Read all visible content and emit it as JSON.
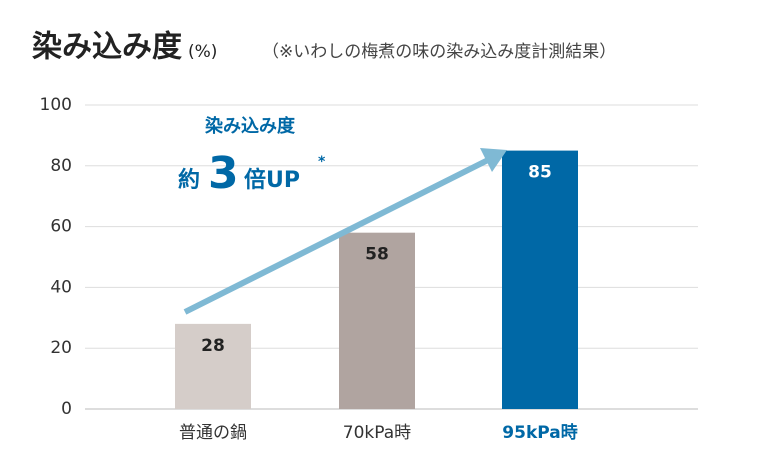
{
  "chart_data": {
    "type": "bar",
    "title": "染み込み度",
    "unit": "(%)",
    "subtitle": "（※いわしの梅煮の味の染み込み度計測結果）",
    "categories": [
      "普通の鍋",
      "70kPa時",
      "95kPa時"
    ],
    "values": [
      28,
      58,
      85
    ],
    "colors": [
      "#d5cdc9",
      "#b0a4a0",
      "#0068a6"
    ],
    "highlight": 2,
    "ylim": [
      0,
      100
    ],
    "yticks": [
      0,
      20,
      40,
      60,
      80,
      100
    ],
    "grid": true,
    "annotation": {
      "heading": "染み込み度",
      "prefix": "約",
      "number": "3",
      "suffix": "倍UP",
      "mark": "*"
    },
    "arrow_color": "#7fb9d4"
  }
}
